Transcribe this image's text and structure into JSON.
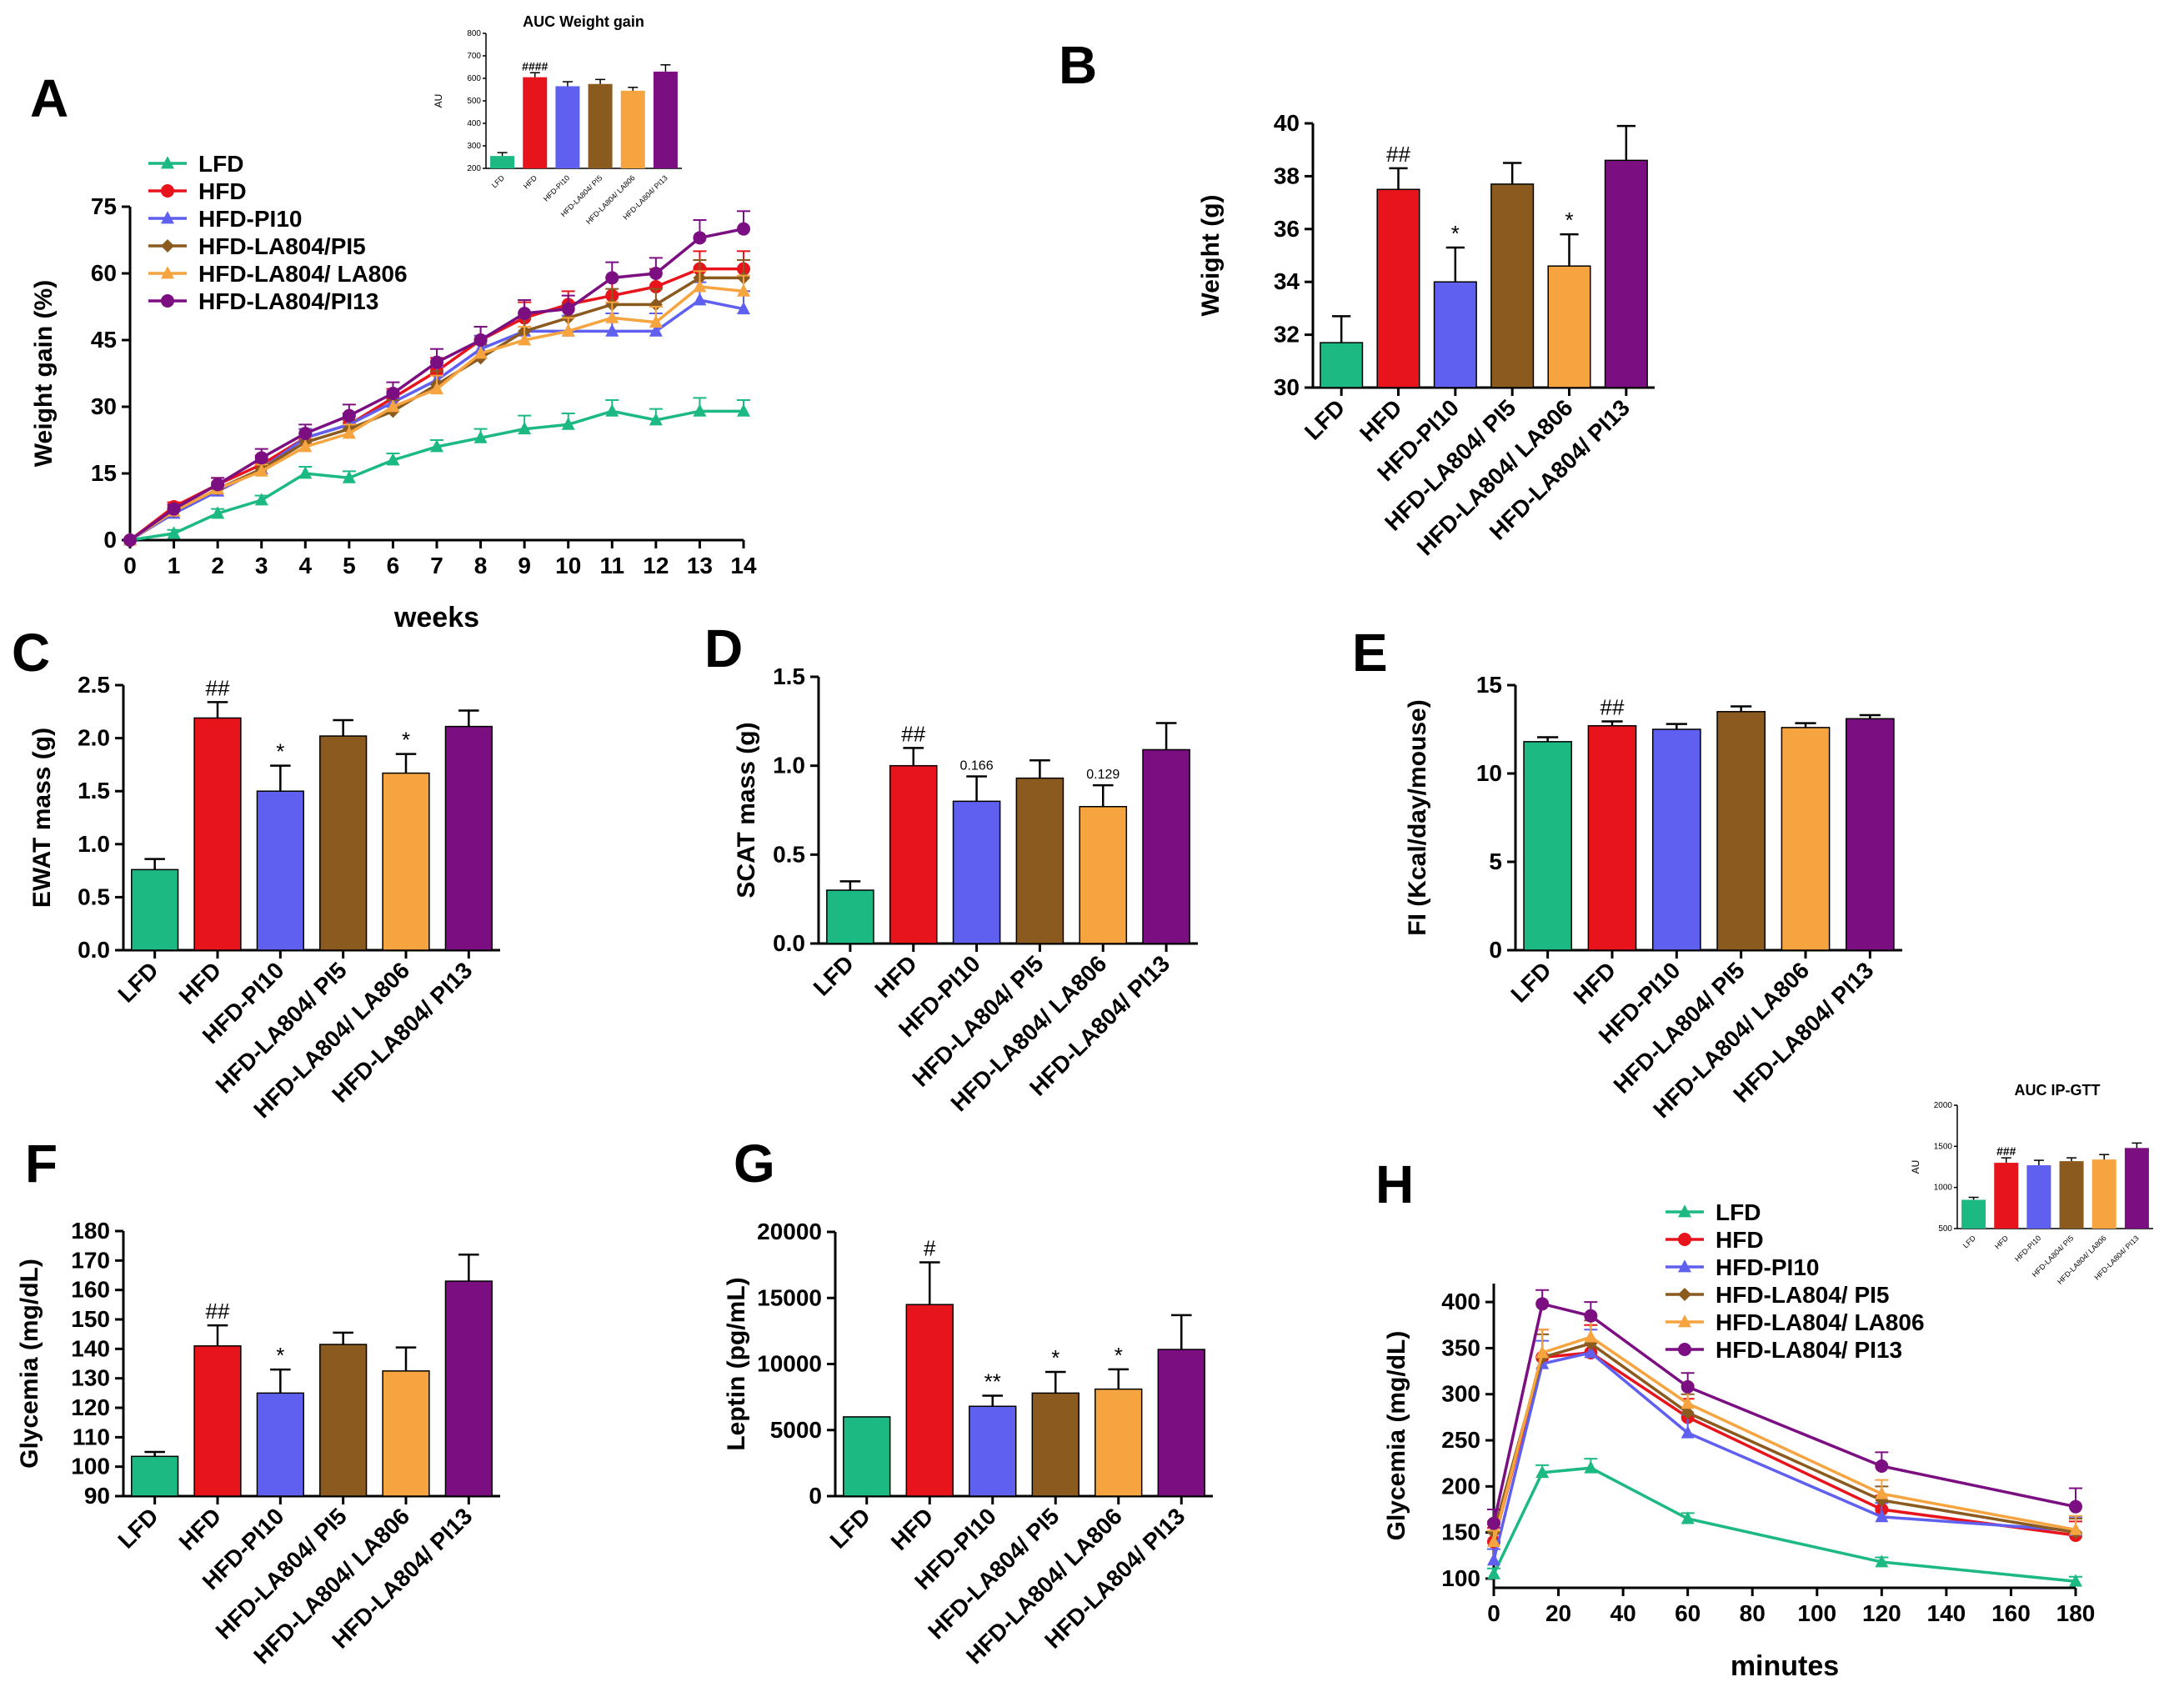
{
  "chart_data": [
    {
      "id": "A",
      "type": "line",
      "panel_label": "A",
      "xlabel": "weeks",
      "ylabel": "Weight gain (%)",
      "xlim": [
        0,
        14
      ],
      "ylim": [
        0,
        75
      ],
      "xticks": [
        0,
        1,
        2,
        3,
        4,
        5,
        6,
        7,
        8,
        9,
        10,
        11,
        12,
        13,
        14
      ],
      "yticks": [
        0,
        15,
        30,
        45,
        60,
        75
      ],
      "x": [
        0,
        1,
        2,
        3,
        4,
        5,
        6,
        7,
        8,
        9,
        10,
        11,
        12,
        13,
        14
      ],
      "legend_position": "top-left",
      "series": [
        {
          "name": "LFD",
          "color": "#1db983",
          "marker": "triangle",
          "values": [
            0,
            1.5,
            6,
            9,
            15,
            14,
            18,
            21,
            23,
            25,
            26,
            29,
            27,
            29,
            29
          ],
          "errors": [
            0,
            0.8,
            1,
            1,
            1.5,
            1.5,
            1.5,
            1.5,
            2,
            3,
            2.5,
            2.5,
            2.5,
            3,
            2.5
          ]
        },
        {
          "name": "HFD",
          "color": "#e8141c",
          "marker": "circle",
          "values": [
            0,
            7.5,
            12.5,
            17,
            23,
            26,
            32,
            38,
            45,
            50,
            53,
            55,
            57,
            61,
            61
          ],
          "errors": [
            0,
            1,
            1.5,
            2,
            2,
            2.5,
            2,
            3,
            3,
            3.5,
            3,
            4,
            4,
            4,
            4
          ]
        },
        {
          "name": "HFD-PI10",
          "color": "#5f5ff0",
          "marker": "triangle",
          "values": [
            0,
            6,
            11,
            16,
            23,
            26,
            31,
            36,
            43,
            47,
            47,
            47,
            47,
            54,
            52
          ],
          "errors": [
            0,
            1,
            1.5,
            1.5,
            2,
            2.5,
            2.5,
            3,
            3,
            3,
            3.5,
            4,
            4,
            4,
            4
          ]
        },
        {
          "name": "HFD-LA804/PI5",
          "color": "#8b5a1e",
          "marker": "diamond",
          "values": [
            0,
            6.5,
            11.5,
            16,
            22,
            25,
            29,
            35,
            41,
            47,
            50,
            53,
            53,
            59,
            59
          ],
          "errors": [
            0,
            1,
            1.5,
            1.5,
            2,
            2,
            2.5,
            3,
            3,
            3,
            3,
            3.5,
            3.5,
            4,
            4
          ]
        },
        {
          "name": "HFD-LA804/ LA806",
          "color": "#f5a440",
          "marker": "triangle",
          "values": [
            0,
            6.5,
            11.5,
            15.5,
            21,
            24,
            30,
            34,
            42,
            45,
            47,
            50,
            49,
            57,
            56
          ],
          "errors": [
            0,
            1,
            1.5,
            1.5,
            2,
            2,
            2.5,
            3,
            3,
            3,
            3,
            3.5,
            3.5,
            3.5,
            3.5
          ]
        },
        {
          "name": "HFD-LA804/PI13",
          "color": "#7b0f82",
          "marker": "circle",
          "values": [
            0,
            7,
            12.5,
            18.5,
            24,
            28,
            33,
            40,
            45,
            51,
            52,
            59,
            60,
            68,
            70
          ],
          "errors": [
            0,
            1,
            1.5,
            2,
            2,
            2.5,
            2.5,
            3,
            3,
            3,
            3,
            3.5,
            3.5,
            4,
            4
          ]
        }
      ],
      "inset": {
        "title": "AUC Weight gain",
        "ylabel": "AU",
        "ylim": [
          200,
          800
        ],
        "yticks": [
          200,
          300,
          400,
          500,
          600,
          700,
          800
        ],
        "categories": [
          "LFD",
          "HFD",
          "HFD-PI10",
          "HFD-LA804/ PI5",
          "HFD-LA804/ LA806",
          "HFD-LA804/ PI13"
        ],
        "values": [
          255,
          605,
          565,
          575,
          545,
          630
        ],
        "errors": [
          15,
          20,
          20,
          20,
          15,
          30
        ],
        "annotations": [
          "",
          "####",
          "",
          "",
          "",
          ""
        ]
      }
    },
    {
      "id": "B",
      "type": "bar",
      "panel_label": "B",
      "ylabel": "Weight (g)",
      "ylim": [
        30,
        40
      ],
      "yticks": [
        30,
        32,
        34,
        36,
        38,
        40
      ],
      "categories": [
        "LFD",
        "HFD",
        "HFD-PI10",
        "HFD-LA804/ PI5",
        "HFD-LA804/ LA806",
        "HFD-LA804/ PI13"
      ],
      "values": [
        31.7,
        37.5,
        34.0,
        37.7,
        34.6,
        38.6
      ],
      "errors": [
        1.0,
        0.8,
        1.3,
        0.8,
        1.2,
        1.3
      ],
      "annotations": [
        "",
        "##",
        "*",
        "",
        "*",
        ""
      ]
    },
    {
      "id": "C",
      "type": "bar",
      "panel_label": "C",
      "ylabel": "EWAT mass (g)",
      "ylim": [
        0,
        2.5
      ],
      "yticks": [
        "0.0",
        "0.5",
        "1.0",
        "1.5",
        "2.0",
        "2.5"
      ],
      "categories": [
        "LFD",
        "HFD",
        "HFD-PI10",
        "HFD-LA804/ PI5",
        "HFD-LA804/ LA806",
        "HFD-LA804/ PI13"
      ],
      "values": [
        0.76,
        2.19,
        1.5,
        2.02,
        1.67,
        2.11
      ],
      "errors": [
        0.1,
        0.15,
        0.24,
        0.15,
        0.18,
        0.15
      ],
      "annotations": [
        "",
        "##",
        "*",
        "",
        "*",
        ""
      ]
    },
    {
      "id": "D",
      "type": "bar",
      "panel_label": "D",
      "ylabel": "SCAT mass (g)",
      "ylim": [
        0,
        1.5
      ],
      "yticks": [
        "0.0",
        "0.5",
        "1.0",
        "1.5"
      ],
      "categories": [
        "LFD",
        "HFD",
        "HFD-PI10",
        "HFD-LA804/ PI5",
        "HFD-LA804/ LA806",
        "HFD-LA804/ PI13"
      ],
      "values": [
        0.3,
        1.0,
        0.8,
        0.93,
        0.77,
        1.09
      ],
      "errors": [
        0.05,
        0.1,
        0.14,
        0.1,
        0.12,
        0.15
      ],
      "annotations": [
        "",
        "##",
        "0.166",
        "",
        "0.129",
        ""
      ]
    },
    {
      "id": "E",
      "type": "bar",
      "panel_label": "E",
      "ylabel": "FI (Kcal/day/mouse)",
      "ylim": [
        0,
        15
      ],
      "yticks": [
        0,
        5,
        10,
        15
      ],
      "categories": [
        "LFD",
        "HFD",
        "HFD-PI10",
        "HFD-LA804/ PI5",
        "HFD-LA804/ LA806",
        "HFD-LA804/ PI13"
      ],
      "values": [
        11.8,
        12.7,
        12.5,
        13.5,
        12.6,
        13.1
      ],
      "errors": [
        0.25,
        0.25,
        0.3,
        0.3,
        0.25,
        0.2
      ],
      "annotations": [
        "",
        "##",
        "",
        "",
        "",
        ""
      ]
    },
    {
      "id": "F",
      "type": "bar",
      "panel_label": "F",
      "ylabel": "Glycemia (mg/dL)",
      "ylim": [
        90,
        180
      ],
      "yticks": [
        90,
        100,
        110,
        120,
        130,
        140,
        150,
        160,
        170,
        180
      ],
      "categories": [
        "LFD",
        "HFD",
        "HFD-PI10",
        "HFD-LA804/ PI5",
        "HFD-LA804/ LA806",
        "HFD-LA804/ PI13"
      ],
      "values": [
        103.5,
        141,
        125,
        141.5,
        132.5,
        163
      ],
      "errors": [
        1.5,
        7,
        8,
        4,
        8,
        9
      ],
      "annotations": [
        "",
        "##",
        "*",
        "",
        "",
        ""
      ]
    },
    {
      "id": "G",
      "type": "bar",
      "panel_label": "G",
      "ylabel": "Leptin (pg/mL)",
      "ylim": [
        0,
        20000
      ],
      "yticks": [
        0,
        5000,
        10000,
        15000,
        20000
      ],
      "categories": [
        "LFD",
        "HFD",
        "HFD-PI10",
        "HFD-LA804/ PI5",
        "HFD-LA804/ LA806",
        "HFD-LA804/ PI13"
      ],
      "values": [
        6000,
        14500,
        6800,
        7800,
        8100,
        11100
      ],
      "errors": [
        0,
        3200,
        800,
        1600,
        1500,
        2600
      ],
      "annotations": [
        "",
        "#",
        "**",
        "*",
        "*",
        ""
      ]
    },
    {
      "id": "H",
      "type": "line",
      "panel_label": "H",
      "xlabel": "minutes",
      "ylabel": "Glycemia (mg/dL)",
      "xlim": [
        0,
        180
      ],
      "ylim": [
        90,
        420
      ],
      "xticks": [
        0,
        20,
        40,
        60,
        80,
        100,
        120,
        140,
        160,
        180
      ],
      "yticks": [
        100,
        150,
        200,
        250,
        300,
        350,
        400
      ],
      "x": [
        0,
        15,
        30,
        60,
        120,
        180
      ],
      "legend_position": "top-right",
      "series": [
        {
          "name": "LFD",
          "color": "#1db983",
          "marker": "triangle",
          "values": [
            105,
            215,
            220,
            165,
            118,
            97
          ],
          "errors": [
            6,
            8,
            10,
            6,
            5,
            5
          ]
        },
        {
          "name": "HFD",
          "color": "#e8141c",
          "marker": "circle",
          "values": [
            140,
            340,
            345,
            275,
            175,
            147
          ],
          "errors": [
            15,
            30,
            30,
            20,
            15,
            15
          ]
        },
        {
          "name": "HFD-PI10",
          "color": "#5f5ff0",
          "marker": "triangle",
          "values": [
            120,
            333,
            345,
            258,
            167,
            152
          ],
          "errors": [
            12,
            25,
            25,
            20,
            15,
            15
          ]
        },
        {
          "name": "HFD-LA804/ PI5",
          "color": "#8b5a1e",
          "marker": "diamond",
          "values": [
            150,
            340,
            355,
            280,
            185,
            150
          ],
          "errors": [
            12,
            25,
            25,
            20,
            15,
            15
          ]
        },
        {
          "name": "HFD-LA804/ LA806",
          "color": "#f5a440",
          "marker": "triangle",
          "values": [
            140,
            345,
            362,
            290,
            192,
            153
          ],
          "errors": [
            12,
            25,
            25,
            20,
            15,
            15
          ]
        },
        {
          "name": "HFD-LA804/ PI13",
          "color": "#7b0f82",
          "marker": "circle",
          "values": [
            160,
            398,
            385,
            308,
            222,
            178
          ],
          "errors": [
            15,
            15,
            15,
            15,
            15,
            20
          ]
        }
      ],
      "inset": {
        "title": "AUC IP-GTT",
        "ylabel": "AU",
        "ylim": [
          500,
          2000
        ],
        "yticks": [
          500,
          1000,
          1500,
          2000
        ],
        "categories": [
          "LFD",
          "HFD",
          "HFD-PI10",
          "HFD-LA804/ PI5",
          "HFD-LA804/ LA806",
          "HFD-LA804/ PI13"
        ],
        "values": [
          850,
          1300,
          1270,
          1320,
          1340,
          1480
        ],
        "errors": [
          30,
          60,
          60,
          40,
          60,
          60
        ],
        "annotations": [
          "",
          "###",
          "",
          "",
          "",
          ""
        ]
      }
    }
  ],
  "bar_colors": [
    "#1db983",
    "#e8141c",
    "#5f5ff0",
    "#8b5a1e",
    "#f5a440",
    "#7b0f82"
  ]
}
